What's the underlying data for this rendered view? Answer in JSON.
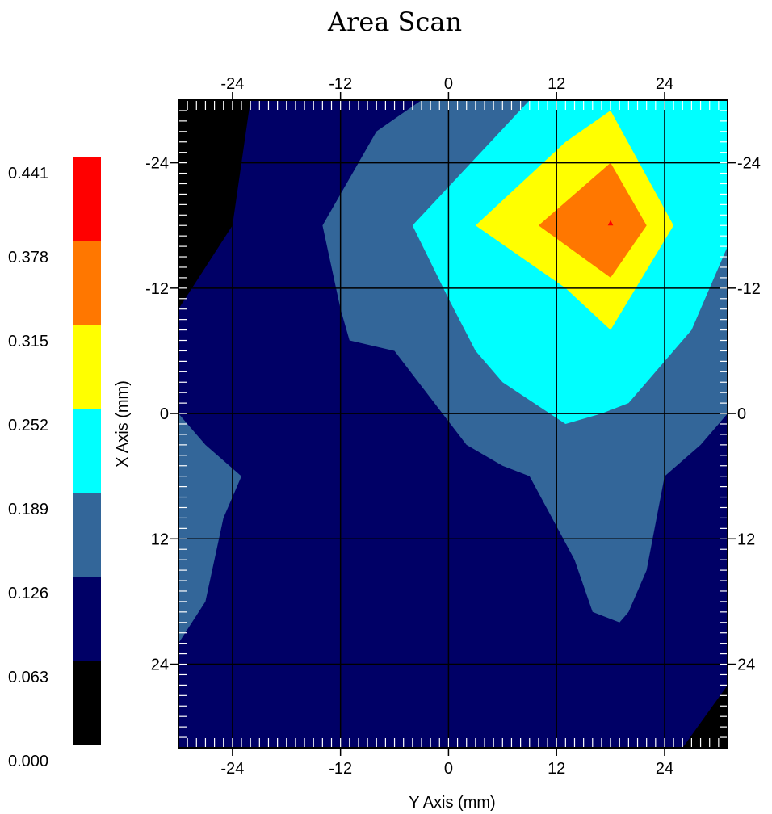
{
  "chart_data": {
    "type": "heatmap",
    "title": "Area Scan",
    "xlabel": "Y Axis (mm)",
    "ylabel": "X Axis (mm)",
    "xlim": [
      -30,
      31
    ],
    "ylim": [
      -30,
      32
    ],
    "y_inverted": true,
    "x_ticks": [
      -24,
      -12,
      0,
      12,
      24
    ],
    "y_ticks": [
      -24,
      -12,
      0,
      12,
      24
    ],
    "x_tick_labels": [
      "-24",
      "-12",
      "0",
      "12",
      "24"
    ],
    "y_tick_labels": [
      "-24",
      "-12",
      "0",
      "12",
      "24"
    ],
    "grid": true,
    "colorbar": {
      "levels": [
        0.0,
        0.063,
        0.126,
        0.189,
        0.252,
        0.315,
        0.378,
        0.441
      ],
      "labels": [
        "0.000",
        "0.063",
        "0.126",
        "0.189",
        "0.252",
        "0.315",
        "0.378",
        "0.441"
      ],
      "colors": [
        "#000000",
        "#000066",
        "#336699",
        "#00ffff",
        "#ffff00",
        "#ff7700",
        "#ff0000"
      ]
    },
    "contour_regions": [
      {
        "level_index": 0,
        "color": "#000000",
        "points": [
          [
            -30,
            -30
          ],
          [
            -22,
            -30
          ],
          [
            -24,
            -18
          ],
          [
            -30,
            -10
          ]
        ]
      },
      {
        "level_index": 0,
        "color": "#000000",
        "points": [
          [
            31,
            26
          ],
          [
            31,
            32
          ],
          [
            26,
            32
          ]
        ]
      },
      {
        "level_index": 2,
        "color": "#336699",
        "points": [
          [
            -30,
            0
          ],
          [
            -27,
            3
          ],
          [
            -23,
            6
          ],
          [
            -25,
            10
          ],
          [
            -27,
            18
          ],
          [
            -30,
            22
          ]
        ]
      },
      {
        "level_index": 2,
        "color": "#336699",
        "points": [
          [
            -3,
            -30
          ],
          [
            31,
            -30
          ],
          [
            31,
            0
          ],
          [
            28,
            3
          ],
          [
            24,
            6
          ],
          [
            22,
            15
          ],
          [
            20,
            19
          ],
          [
            19,
            20
          ],
          [
            16,
            19
          ],
          [
            14,
            14
          ],
          [
            9,
            6
          ],
          [
            6,
            5
          ],
          [
            2,
            3
          ],
          [
            -6,
            -6
          ],
          [
            -11,
            -7
          ],
          [
            -12,
            -10
          ],
          [
            -14,
            -18
          ],
          [
            -8,
            -27
          ]
        ]
      },
      {
        "level_index": 3,
        "color": "#00ffff",
        "points": [
          [
            9,
            -30
          ],
          [
            31,
            -30
          ],
          [
            31,
            -16
          ],
          [
            27,
            -8
          ],
          [
            20,
            -1
          ],
          [
            17,
            0
          ],
          [
            13,
            1
          ],
          [
            6,
            -3
          ],
          [
            3,
            -6
          ],
          [
            0,
            -11
          ],
          [
            -4,
            -18
          ]
        ]
      },
      {
        "level_index": 4,
        "color": "#ffff00",
        "points": [
          [
            18,
            -29
          ],
          [
            25,
            -18
          ],
          [
            18,
            -8
          ],
          [
            13,
            -12
          ],
          [
            3,
            -18
          ],
          [
            13,
            -26
          ]
        ]
      },
      {
        "level_index": 5,
        "color": "#ff7700",
        "points": [
          [
            18,
            -24
          ],
          [
            22,
            -18
          ],
          [
            18,
            -13
          ],
          [
            10,
            -18
          ]
        ]
      },
      {
        "level_index": 6,
        "color": "#ff0000",
        "points": [
          [
            18,
            -18.5
          ],
          [
            18.3,
            -18
          ],
          [
            17.7,
            -18
          ]
        ]
      }
    ]
  }
}
